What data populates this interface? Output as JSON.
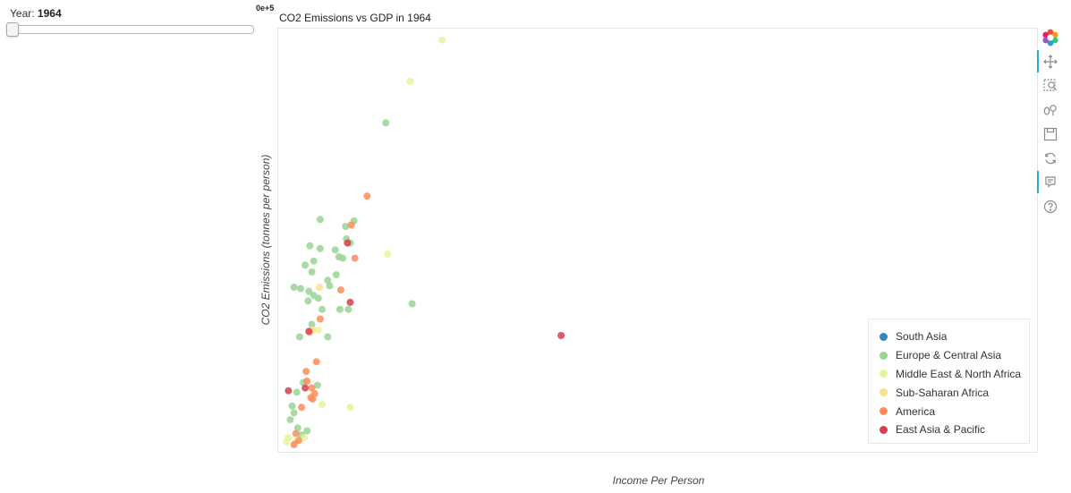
{
  "slider": {
    "title": "Year: ",
    "value": "1964",
    "min": 1964,
    "max": 2013,
    "current": 1964
  },
  "sci_notation": "0e+5",
  "chart_data": {
    "type": "scatter",
    "title": "CO2 Emissions vs GDP in 1964",
    "xlabel": "Income Per Person",
    "ylabel": "CO2 Emissions (tonnes per person)",
    "xlim": [
      0,
      80000
    ],
    "ylim": [
      0,
      30
    ],
    "legend_position": "bottom-right",
    "grid": false,
    "series": [
      {
        "name": "South Asia",
        "color": "#3288bd",
        "points": []
      },
      {
        "name": "Europe & Central Asia",
        "color": "#99d594",
        "points": [
          [
            1200,
            2.5
          ],
          [
            800,
            2
          ],
          [
            1600,
            1.4
          ],
          [
            2000,
            0.9
          ],
          [
            2600,
            1.2
          ],
          [
            1000,
            3
          ],
          [
            1500,
            4
          ],
          [
            2200,
            4.7
          ],
          [
            3700,
            4.5
          ],
          [
            1800,
            8
          ],
          [
            4800,
            8
          ],
          [
            7000,
            10
          ],
          [
            5000,
            11.7
          ],
          [
            3300,
            11
          ],
          [
            3800,
            10.8
          ],
          [
            2700,
            10.6
          ],
          [
            4200,
            10
          ],
          [
            6100,
            10
          ],
          [
            1200,
            11.6
          ],
          [
            1900,
            11.5
          ],
          [
            2800,
            11.3
          ],
          [
            4800,
            12.1
          ],
          [
            3100,
            12.7
          ],
          [
            5700,
            12.5
          ],
          [
            2400,
            13.2
          ],
          [
            6000,
            13.8
          ],
          [
            6400,
            13.7
          ],
          [
            5600,
            14.3
          ],
          [
            4000,
            14.4
          ],
          [
            3300,
            13.5
          ],
          [
            2900,
            14.6
          ],
          [
            7200,
            14.8
          ],
          [
            6800,
            15.1
          ],
          [
            6700,
            16
          ],
          [
            4000,
            16.5
          ],
          [
            7600,
            16.4
          ],
          [
            11000,
            23.5
          ],
          [
            13800,
            10.4
          ],
          [
            3100,
            8.9
          ]
        ]
      },
      {
        "name": "Middle East & North Africa",
        "color": "#e6f598",
        "points": [
          [
            17000,
            29.5
          ],
          [
            13600,
            26.5
          ],
          [
            11200,
            14
          ],
          [
            7200,
            2.9
          ],
          [
            4200,
            3.1
          ],
          [
            400,
            0.4
          ],
          [
            2300,
            0.7
          ],
          [
            600,
            0.7
          ],
          [
            3800,
            8.5
          ]
        ]
      },
      {
        "name": "Sub-Saharan Africa",
        "color": "#fee08b",
        "points": [
          [
            3900,
            11.6
          ],
          [
            3200,
            8.5
          ],
          [
            2900,
            8.3
          ],
          [
            1300,
            0.3
          ]
        ]
      },
      {
        "name": "America",
        "color": "#fc8d59",
        "points": [
          [
            9000,
            18.2
          ],
          [
            7300,
            16.1
          ],
          [
            7700,
            13.7
          ],
          [
            6200,
            11.4
          ],
          [
            4000,
            9.3
          ],
          [
            3600,
            6.2
          ],
          [
            2500,
            5.5
          ],
          [
            2600,
            4.8
          ],
          [
            3100,
            4.3
          ],
          [
            3400,
            3.9
          ],
          [
            3000,
            3.6
          ],
          [
            3200,
            3.5
          ],
          [
            2000,
            2.9
          ],
          [
            1400,
            1
          ],
          [
            1200,
            0.2
          ],
          [
            1700,
            0.5
          ]
        ]
      },
      {
        "name": "East Asia & Pacific",
        "color": "#d53e4f",
        "points": [
          [
            29700,
            8.1
          ],
          [
            7200,
            10.5
          ],
          [
            2800,
            8.4
          ],
          [
            6900,
            14.8
          ],
          [
            2400,
            4.3
          ],
          [
            600,
            4.1
          ]
        ]
      }
    ]
  },
  "toolbar": {
    "items": [
      {
        "name": "bokeh-logo-icon",
        "active": false
      },
      {
        "name": "pan-tool-icon",
        "active": true
      },
      {
        "name": "box-zoom-tool-icon",
        "active": false
      },
      {
        "name": "wheel-zoom-tool-icon",
        "active": false
      },
      {
        "name": "save-tool-icon",
        "active": false
      },
      {
        "name": "reset-tool-icon",
        "active": false
      },
      {
        "name": "hover-tool-icon",
        "active": true
      },
      {
        "name": "help-icon",
        "active": false
      }
    ]
  }
}
